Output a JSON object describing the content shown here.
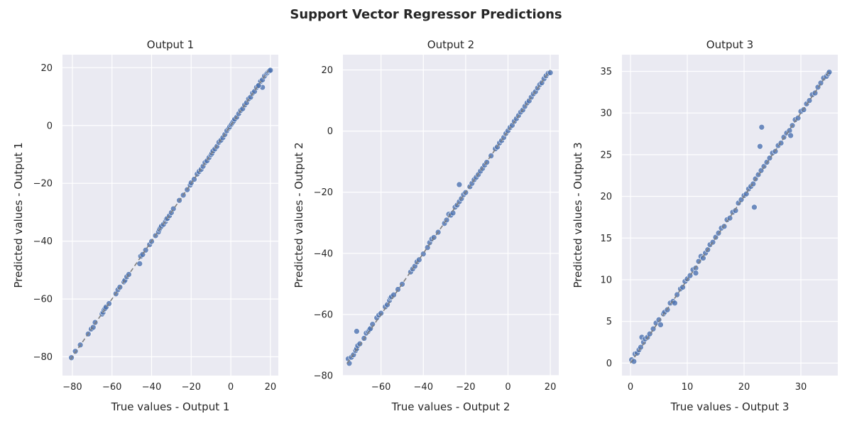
{
  "figure": {
    "title": "Support Vector Regressor Predictions",
    "background": "#ffffff",
    "axes_background": "#eaeaf2",
    "grid_color": "#ffffff",
    "point_color": "#4c72b0",
    "reference_line_color": "#7f7f7f"
  },
  "chart_data": [
    {
      "type": "scatter",
      "title": "Output 1",
      "xlabel": "True values - Output 1",
      "ylabel": "Predicted values - Output 1",
      "xlim": [
        -85,
        24
      ],
      "ylim": [
        -86.5,
        24.5
      ],
      "xticks": [
        -80,
        -60,
        -40,
        -20,
        0,
        20
      ],
      "yticks": [
        -80,
        -60,
        -40,
        -20,
        0,
        20
      ],
      "grid": true,
      "reference_line": {
        "style": "dashed",
        "from": [
          -81,
          -81
        ],
        "to": [
          19,
          19
        ]
      },
      "x": [
        -80.5,
        -78.5,
        -76,
        -72,
        -70.5,
        -69.5,
        -68.5,
        -65,
        -64.5,
        -64,
        -63.5,
        -63,
        -61.5,
        -58,
        -57,
        -56,
        -54,
        -53.5,
        -52.5,
        -51.5,
        -46,
        -45.5,
        -44.5,
        -43,
        -41,
        -40,
        -38,
        -36.5,
        -36,
        -35.5,
        -35,
        -34,
        -33,
        -32.5,
        -32,
        -31,
        -30,
        -29,
        -26,
        -24,
        -22,
        -20.5,
        -20,
        -18.5,
        -17,
        -16,
        -15,
        -14,
        -13,
        -12,
        -11,
        -10,
        -9.5,
        -9,
        -8,
        -7,
        -6,
        -5,
        -4,
        -3,
        -2,
        -1,
        -0.5,
        0,
        0.5,
        1,
        1.5,
        2,
        3,
        4,
        5,
        6,
        7,
        8,
        9,
        10,
        11,
        12,
        13,
        14,
        15,
        16,
        17,
        18,
        18.5,
        19,
        19.5,
        20,
        16,
        14
      ],
      "y": [
        -80.3,
        -78.1,
        -75.9,
        -72.1,
        -70.4,
        -69.8,
        -68.1,
        -65.2,
        -64.6,
        -63.7,
        -63.3,
        -62.8,
        -61.6,
        -58.2,
        -56.8,
        -55.9,
        -54.1,
        -53.6,
        -52.3,
        -51.5,
        -47.8,
        -45.2,
        -44.6,
        -43.1,
        -41.2,
        -40.1,
        -38.1,
        -36.8,
        -35.9,
        -35.3,
        -34.8,
        -34.2,
        -33.2,
        -32.3,
        -32.1,
        -31.2,
        -30.1,
        -28.8,
        -25.9,
        -24.1,
        -22.2,
        -20.6,
        -19.8,
        -18.6,
        -16.8,
        -15.9,
        -15.2,
        -14.1,
        -12.8,
        -12.2,
        -11.1,
        -10.1,
        -9.6,
        -8.8,
        -8.1,
        -7.2,
        -5.8,
        -5.1,
        -4.2,
        -3.1,
        -1.8,
        -0.9,
        -0.4,
        0.2,
        0.6,
        1.1,
        1.6,
        2.2,
        2.9,
        4.1,
        5.2,
        5.8,
        7.1,
        7.9,
        9.2,
        9.8,
        11.2,
        11.8,
        13.2,
        13.9,
        15.2,
        15.8,
        17.1,
        17.9,
        18.2,
        18.6,
        18.9,
        19.1,
        13.2,
        13.8
      ]
    },
    {
      "type": "scatter",
      "title": "Output 2",
      "xlabel": "True values - Output 2",
      "ylabel": "Predicted values - Output 2",
      "xlim": [
        -78,
        24
      ],
      "ylim": [
        -80,
        25
      ],
      "xticks": [
        -60,
        -40,
        -20,
        0,
        20
      ],
      "yticks": [
        -80,
        -60,
        -40,
        -20,
        0,
        20
      ],
      "grid": true,
      "reference_line": {
        "style": "dashed",
        "from": [
          -76,
          -76
        ],
        "to": [
          20,
          20
        ]
      },
      "x": [
        -75.5,
        -75,
        -74,
        -73,
        -72,
        -71.5,
        -71,
        -70,
        -68,
        -67,
        -66,
        -65.5,
        -65,
        -64,
        -62,
        -61,
        -60,
        -58,
        -57,
        -56,
        -55.5,
        -55,
        -54,
        -52,
        -50,
        -46,
        -45,
        -44,
        -43,
        -42,
        -40,
        -38,
        -37,
        -36,
        -35,
        -33,
        -30,
        -29,
        -28,
        -27,
        -26,
        -25,
        -24,
        -23,
        -22,
        -21,
        -20,
        -18,
        -17,
        -16,
        -15,
        -14,
        -13,
        -12,
        -11,
        -10,
        -8,
        -6,
        -5,
        -4,
        -3,
        -2,
        -1,
        0,
        1,
        2,
        3,
        4,
        5,
        6,
        7,
        8,
        9,
        10,
        11,
        12,
        13,
        14,
        15,
        16,
        17,
        18,
        19,
        20,
        -71.5,
        -23
      ],
      "y": [
        -74.5,
        -76,
        -74,
        -73.2,
        -71.8,
        -71.2,
        -70.2,
        -69.6,
        -67.8,
        -66.1,
        -65.5,
        -65,
        -64.6,
        -63.2,
        -61.1,
        -60.2,
        -59.6,
        -57.5,
        -56.8,
        -55.4,
        -54.5,
        -54.2,
        -53.6,
        -51.8,
        -50.1,
        -46.1,
        -45.1,
        -44.2,
        -42.8,
        -42.1,
        -40.2,
        -38.1,
        -36.5,
        -35.3,
        -34.8,
        -33.1,
        -30.2,
        -29.1,
        -27.2,
        -27.5,
        -26.8,
        -24.9,
        -24.2,
        -23.1,
        -22.1,
        -20.8,
        -20.1,
        -18.2,
        -17.1,
        -15.9,
        -15.1,
        -14.2,
        -13.1,
        -12.2,
        -11.1,
        -10.2,
        -8.1,
        -5.8,
        -5.2,
        -3.9,
        -3.1,
        -2.1,
        -0.8,
        0.1,
        1.2,
        1.9,
        3.2,
        4.1,
        5.1,
        6.2,
        6.9,
        8.1,
        9.2,
        9.9,
        11.1,
        12.2,
        12.9,
        14.1,
        15.2,
        15.8,
        17.1,
        18.1,
        18.9,
        19.1,
        -65.5,
        -17.5
      ]
    },
    {
      "type": "scatter",
      "title": "Output 3",
      "xlabel": "True values - Output 3",
      "ylabel": "Predicted values - Output 3",
      "xlim": [
        -1.5,
        36.5
      ],
      "ylim": [
        -1.5,
        37
      ],
      "xticks": [
        0,
        10,
        20,
        30
      ],
      "yticks": [
        0,
        5,
        10,
        15,
        20,
        25,
        30,
        35
      ],
      "grid": true,
      "reference_line": {
        "style": "dashed",
        "from": [
          0,
          0
        ],
        "to": [
          35,
          35
        ]
      },
      "x": [
        0.2,
        0.6,
        0.8,
        1.2,
        1.5,
        1.8,
        2.0,
        2.3,
        2.6,
        3.0,
        3.4,
        4.0,
        4.5,
        5.0,
        5.3,
        5.8,
        6.0,
        6.5,
        7.0,
        7.5,
        7.8,
        8.2,
        8.8,
        9.2,
        9.6,
        10.0,
        10.5,
        11.0,
        11.5,
        12.0,
        12.4,
        12.8,
        13.2,
        13.6,
        14.0,
        14.5,
        15.0,
        15.5,
        16.0,
        16.5,
        17.0,
        17.5,
        18.0,
        18.5,
        19.0,
        19.5,
        20.0,
        20.4,
        20.8,
        21.2,
        21.6,
        22.0,
        22.5,
        23.0,
        23.5,
        24.0,
        24.5,
        25.0,
        25.5,
        26.0,
        26.5,
        27.0,
        27.5,
        28.0,
        28.5,
        29.0,
        29.5,
        30.0,
        30.5,
        31.0,
        31.5,
        32.0,
        32.5,
        33.0,
        33.5,
        34.0,
        34.5,
        34.8,
        35.0,
        22.8,
        23.1,
        21.8,
        11.5,
        28.2
      ],
      "y": [
        0.4,
        0.2,
        1.1,
        1.2,
        1.6,
        1.9,
        3.1,
        2.5,
        2.9,
        3.1,
        3.5,
        4.1,
        4.8,
        5.2,
        4.6,
        5.9,
        6.1,
        6.4,
        7.2,
        7.4,
        7.2,
        8.2,
        8.9,
        9.1,
        9.8,
        10.1,
        10.5,
        11.2,
        11.4,
        12.2,
        12.8,
        12.6,
        13.2,
        13.6,
        14.2,
        14.5,
        15.1,
        15.6,
        16.2,
        16.4,
        17.2,
        17.4,
        18.1,
        18.3,
        19.2,
        19.6,
        20.1,
        20.3,
        20.9,
        21.2,
        21.5,
        22.1,
        22.6,
        23.1,
        23.6,
        24.1,
        24.6,
        25.2,
        25.4,
        26.1,
        26.4,
        27.1,
        27.6,
        27.9,
        28.5,
        29.2,
        29.4,
        30.2,
        30.4,
        31.1,
        31.5,
        32.2,
        32.4,
        33.1,
        33.6,
        34.2,
        34.4,
        34.7,
        34.9,
        26.0,
        28.3,
        18.7,
        10.8,
        27.3
      ]
    }
  ]
}
